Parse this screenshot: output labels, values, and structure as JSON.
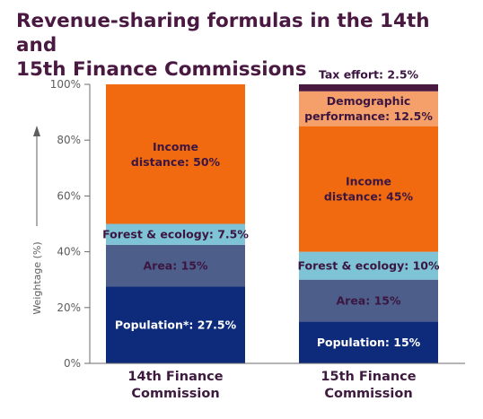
{
  "title_line1": "Revenue-sharing formulas in the 14th and",
  "title_line2": "15th Finance Commissions",
  "chart_data": {
    "type": "bar",
    "stacked": true,
    "ylabel": "Weightage (%)",
    "ylim": [
      0,
      100
    ],
    "yticks": [
      "0%",
      "20%",
      "40%",
      "60%",
      "80%",
      "100%"
    ],
    "categories": [
      [
        "14th Finance",
        "Commission"
      ],
      [
        "15th Finance",
        "Commission"
      ]
    ],
    "bars": [
      {
        "segments": [
          {
            "label": [
              "Population*: 27.5%"
            ],
            "value": 27.5,
            "color": "#0d2b7a",
            "text_color": "#ffffff"
          },
          {
            "label": [
              "Area: 15%"
            ],
            "value": 15,
            "color": "#4d5e8a",
            "text_color": "#3b1640"
          },
          {
            "label": [
              "Forest & ecology: 7.5%"
            ],
            "value": 7.5,
            "color": "#7fc3d6",
            "text_color": "#3b1640"
          },
          {
            "label": [
              "Income",
              "distance: 50%"
            ],
            "value": 50,
            "color": "#f26a10",
            "text_color": "#3b1640"
          }
        ]
      },
      {
        "segments": [
          {
            "label": [
              "Population: 15%"
            ],
            "value": 15,
            "color": "#0d2b7a",
            "text_color": "#ffffff"
          },
          {
            "label": [
              "Area: 15%"
            ],
            "value": 15,
            "color": "#4d5e8a",
            "text_color": "#3b1640"
          },
          {
            "label": [
              "Forest & ecology: 10%"
            ],
            "value": 10,
            "color": "#7fc3d6",
            "text_color": "#3b1640"
          },
          {
            "label": [
              "Income",
              "distance: 45%"
            ],
            "value": 45,
            "color": "#f26a10",
            "text_color": "#3b1640"
          },
          {
            "label": [
              "Demographic",
              "performance: 12.5%"
            ],
            "value": 12.5,
            "color": "#f5a06a",
            "text_color": "#3b1640"
          },
          {
            "label": [
              "Tax effort: 2.5%"
            ],
            "value": 2.5,
            "color": "#4a1942",
            "text_color": "#3b1640",
            "label_above": true
          }
        ]
      }
    ]
  }
}
